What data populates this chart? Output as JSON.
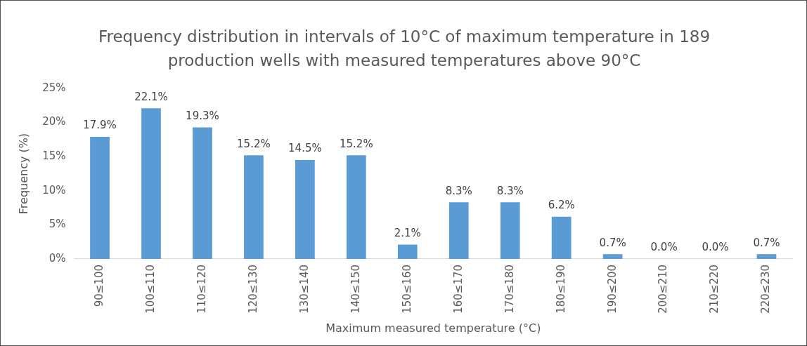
{
  "chart_data": {
    "type": "bar",
    "title": "Frequency distribution in intervals of 10°C of maximum temperature in 189 production wells with measured temperatures above 90°C",
    "xlabel": "Maximum measured temperature (°C)",
    "ylabel": "Frequency (%)",
    "categories": [
      "90≤100",
      "100≤110",
      "110≤120",
      "120≤130",
      "130≤140",
      "140≤150",
      "150≤160",
      "160≤170",
      "170≤180",
      "180≤190",
      "190≤200",
      "200≤210",
      "210≤220",
      "220≤230"
    ],
    "values": [
      17.9,
      22.1,
      19.3,
      15.2,
      14.5,
      15.2,
      2.1,
      8.3,
      8.3,
      6.2,
      0.7,
      0.0,
      0.0,
      0.7
    ],
    "value_labels": [
      "17.9%",
      "22.1%",
      "19.3%",
      "15.2%",
      "14.5%",
      "15.2%",
      "2.1%",
      "8.3%",
      "8.3%",
      "6.2%",
      "0.7%",
      "0.0%",
      "0.0%",
      "0.7%"
    ],
    "color": "#5b9bd5",
    "ylim": [
      0,
      25
    ],
    "yticks": [
      {
        "value": 0,
        "label": "0%"
      },
      {
        "value": 5,
        "label": "5%"
      },
      {
        "value": 10,
        "label": "10%"
      },
      {
        "value": 15,
        "label": "15%"
      },
      {
        "value": 20,
        "label": "20%"
      },
      {
        "value": 25,
        "label": "25%"
      }
    ],
    "grid": false,
    "legend": false
  }
}
